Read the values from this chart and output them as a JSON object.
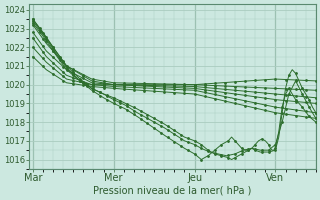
{
  "title": "",
  "xlabel": "Pression niveau de la mer( hPa )",
  "ylabel": "",
  "bg_color": "#cce8e0",
  "plot_bg_color": "#cce8e0",
  "grid_color": "#aaccbf",
  "line_color": "#2d6e2d",
  "ylim": [
    1015.5,
    1024.3
  ],
  "yticks": [
    1016,
    1017,
    1018,
    1019,
    1020,
    1021,
    1022,
    1023,
    1024
  ],
  "day_labels": [
    "Mar",
    "Mer",
    "Jeu",
    "Ven"
  ],
  "day_positions": [
    0,
    48,
    96,
    144
  ],
  "xlim": [
    -2,
    168
  ],
  "marker": ".",
  "markersize": 2,
  "linewidth": 0.7
}
